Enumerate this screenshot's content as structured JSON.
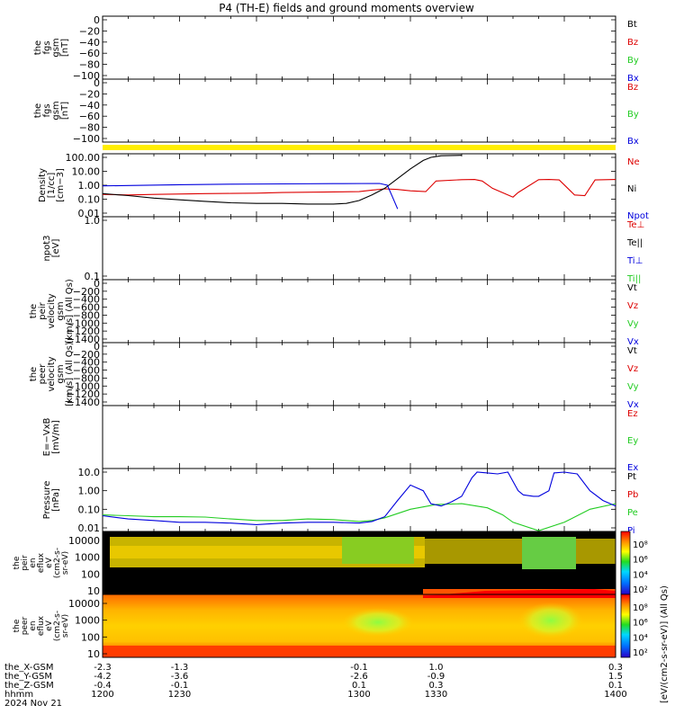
{
  "title": "P4 (TH-E) fields and ground moments overview",
  "colors": {
    "black": "#000000",
    "red": "#dd0000",
    "green": "#22cc22",
    "blue": "#0000dd",
    "yellow": "#ffee00"
  },
  "chart_data": {
    "type": "line",
    "x_range": [
      "1200",
      "1400"
    ],
    "x_ticks": [
      "1200",
      "1230",
      "1300",
      "1330",
      "1400"
    ],
    "bottom_labels": {
      "rows": [
        {
          "label": "the_X-GSM",
          "values": [
            "-2.3",
            "-1.3",
            "-0.1",
            "1.0",
            "0.3"
          ]
        },
        {
          "label": "the_Y-GSM",
          "values": [
            "-4.2",
            "-3.6",
            "-2.6",
            "-0.9",
            "1.5"
          ]
        },
        {
          "label": "the_Z-GSM",
          "values": [
            "-0.4",
            "-0.1",
            "0.1",
            "0.3",
            "0.1"
          ]
        },
        {
          "label": "hhmm",
          "values": [
            "1200",
            "1230",
            "1300",
            "1330",
            "1400"
          ]
        }
      ],
      "date": "2024 Nov 21"
    },
    "panels": [
      {
        "ylabel": [
          "the",
          "fgs",
          "gsm",
          "[nT]"
        ],
        "yticks": [
          "0",
          "−20",
          "−40",
          "−60",
          "−80",
          "−100"
        ],
        "legend": [
          {
            "name": "Bt",
            "color": "black"
          },
          {
            "name": "Bz",
            "color": "red"
          },
          {
            "name": "By",
            "color": "green"
          },
          {
            "name": "Bx",
            "color": "blue"
          }
        ]
      },
      {
        "ylabel": [
          "the",
          "fgs",
          "gsm",
          "[nT]"
        ],
        "yticks": [
          "0",
          "−20",
          "−40",
          "−60",
          "−80",
          "−100"
        ],
        "legend": [
          {
            "name": "Bz",
            "color": "red"
          },
          {
            "name": "By",
            "color": "green"
          },
          {
            "name": "Bx",
            "color": "blue"
          }
        ]
      },
      {
        "ylabel": [
          "Density",
          "[1/cc]",
          "[cm−3]"
        ],
        "yticks": [
          "100.00",
          "10.00",
          "1.00",
          "0.10",
          "0.01"
        ],
        "scale": "log",
        "legend": [
          {
            "name": "Ne",
            "color": "red"
          },
          {
            "name": "Ni",
            "color": "black"
          },
          {
            "name": "Npot",
            "color": "blue"
          }
        ],
        "series": [
          {
            "name": "Ne",
            "color": "red",
            "x": [
              1200,
              1210,
              1220,
              1240,
              1250,
              1260,
              1270,
              1300,
              1305,
              1310,
              1315,
              1320,
              1326,
              1330,
              1340,
              1345,
              1348,
              1352,
              1360,
              1362,
              1370,
              1374,
              1378,
              1384,
              1388,
              1392,
              1400
            ],
            "y": [
              0.22,
              0.2,
              0.22,
              0.25,
              0.26,
              0.27,
              0.3,
              0.35,
              0.45,
              0.55,
              0.5,
              0.4,
              0.35,
              2.0,
              2.5,
              2.6,
              2.0,
              0.6,
              0.14,
              0.3,
              2.5,
              2.6,
              2.4,
              0.2,
              0.18,
              2.4,
              2.6
            ]
          },
          {
            "name": "Ni",
            "color": "black",
            "x": [
              1200,
              1210,
              1220,
              1230,
              1240,
              1250,
              1260,
              1270,
              1280,
              1290,
              1295,
              1300,
              1305,
              1310,
              1315,
              1320,
              1325,
              1328,
              1332,
              1340
            ],
            "y": [
              0.25,
              0.18,
              0.12,
              0.09,
              0.07,
              0.055,
              0.05,
              0.05,
              0.045,
              0.045,
              0.05,
              0.08,
              0.2,
              0.6,
              3.0,
              15.0,
              60.0,
              100.0,
              130.0,
              140.0
            ]
          },
          {
            "name": "Npot",
            "color": "blue",
            "x": [
              1200,
              1210,
              1230,
              1250,
              1270,
              1290,
              1308,
              1311,
              1313,
              1315
            ],
            "y": [
              0.9,
              0.95,
              1.1,
              1.2,
              1.25,
              1.3,
              1.35,
              1.0,
              0.15,
              0.02
            ]
          }
        ]
      },
      {
        "ylabel": [
          "npot3",
          "[eV]"
        ],
        "yticks": [
          "1.0",
          "0.1"
        ],
        "scale": "log",
        "legend": [
          {
            "name": "Te⊥",
            "color": "red"
          },
          {
            "name": "Te||",
            "color": "black"
          },
          {
            "name": "Ti⊥",
            "color": "blue"
          },
          {
            "name": "Ti||",
            "color": "green"
          }
        ]
      },
      {
        "ylabel": [
          "the",
          "peir",
          "velocity",
          "gsm",
          "[km/s] (All Qs)"
        ],
        "yticks": [
          "0",
          "−200",
          "−400",
          "−600",
          "−800",
          "−1000",
          "−1200",
          "−1400"
        ],
        "legend": [
          {
            "name": "Vt",
            "color": "black"
          },
          {
            "name": "Vz",
            "color": "red"
          },
          {
            "name": "Vy",
            "color": "green"
          },
          {
            "name": "Vx",
            "color": "blue"
          }
        ]
      },
      {
        "ylabel": [
          "the",
          "peer",
          "velocity",
          "gsm",
          "[km/s] (All Qs)"
        ],
        "yticks": [
          "0",
          "−200",
          "−400",
          "−600",
          "−800",
          "−1000",
          "−1200",
          "−1400"
        ],
        "legend": [
          {
            "name": "Vt",
            "color": "black"
          },
          {
            "name": "Vz",
            "color": "red"
          },
          {
            "name": "Vy",
            "color": "green"
          },
          {
            "name": "Vx",
            "color": "blue"
          }
        ]
      },
      {
        "ylabel": [
          "E=−VxB",
          "[mV/m]"
        ],
        "yticks": [],
        "legend": [
          {
            "name": "Ez",
            "color": "red"
          },
          {
            "name": "Ey",
            "color": "green"
          },
          {
            "name": "Ex",
            "color": "blue"
          }
        ]
      },
      {
        "ylabel": [
          "Pressure",
          "[nPa]"
        ],
        "yticks": [
          "10.0",
          "1.00",
          "0.10",
          "0.01"
        ],
        "scale": "log",
        "legend": [
          {
            "name": "Pt",
            "color": "black"
          },
          {
            "name": "Pb",
            "color": "red"
          },
          {
            "name": "Pe",
            "color": "green"
          },
          {
            "name": "Pi",
            "color": "blue"
          }
        ],
        "series": [
          {
            "name": "Pe",
            "color": "green",
            "x": [
              1200,
              1210,
              1220,
              1230,
              1240,
              1250,
              1260,
              1270,
              1280,
              1290,
              1300,
              1305,
              1310,
              1320,
              1330,
              1340,
              1350,
              1356,
              1360,
              1370,
              1380,
              1390,
              1400
            ],
            "y": [
              0.05,
              0.045,
              0.04,
              0.04,
              0.038,
              0.03,
              0.025,
              0.025,
              0.03,
              0.028,
              0.022,
              0.025,
              0.035,
              0.1,
              0.18,
              0.2,
              0.12,
              0.05,
              0.02,
              0.007,
              0.02,
              0.1,
              0.2
            ]
          },
          {
            "name": "Pi",
            "color": "blue",
            "x": [
              1200,
              1210,
              1220,
              1230,
              1240,
              1250,
              1260,
              1270,
              1280,
              1290,
              1300,
              1305,
              1310,
              1315,
              1320,
              1325,
              1328,
              1332,
              1336,
              1340,
              1344,
              1346,
              1350,
              1354,
              1358,
              1362,
              1364,
              1368,
              1370,
              1374,
              1376,
              1380,
              1385,
              1390,
              1395,
              1400
            ],
            "y": [
              0.045,
              0.03,
              0.025,
              0.02,
              0.02,
              0.018,
              0.015,
              0.018,
              0.02,
              0.02,
              0.018,
              0.022,
              0.04,
              0.3,
              2.0,
              1.0,
              0.2,
              0.15,
              0.25,
              0.5,
              5.0,
              10.0,
              9.0,
              8.0,
              10.0,
              1.0,
              0.6,
              0.5,
              0.5,
              1.0,
              9.0,
              10.0,
              8.0,
              1.0,
              0.3,
              0.15
            ]
          }
        ]
      }
    ],
    "spectrograms": [
      {
        "ylabel": [
          "the",
          "peir",
          "en",
          "eflux",
          "eV",
          "(cm2-s-",
          "sr-eV)"
        ],
        "yticks": [
          "10000",
          "1000",
          "100",
          "10"
        ],
        "colorbar_ticks": [
          "10⁸",
          "10⁶",
          "10⁴",
          "10²"
        ]
      },
      {
        "ylabel": [
          "the",
          "peer",
          "en",
          "eflux",
          "eV",
          "(cm2-s-",
          "sr-eV)"
        ],
        "yticks": [
          "10000",
          "1000",
          "100",
          "10"
        ],
        "colorbar_ticks": [
          "10⁸",
          "10⁶",
          "10⁴",
          "10²"
        ]
      }
    ],
    "colorbar_label": "[eV/(cm2-s-sr-eV)] (All Qs)"
  }
}
